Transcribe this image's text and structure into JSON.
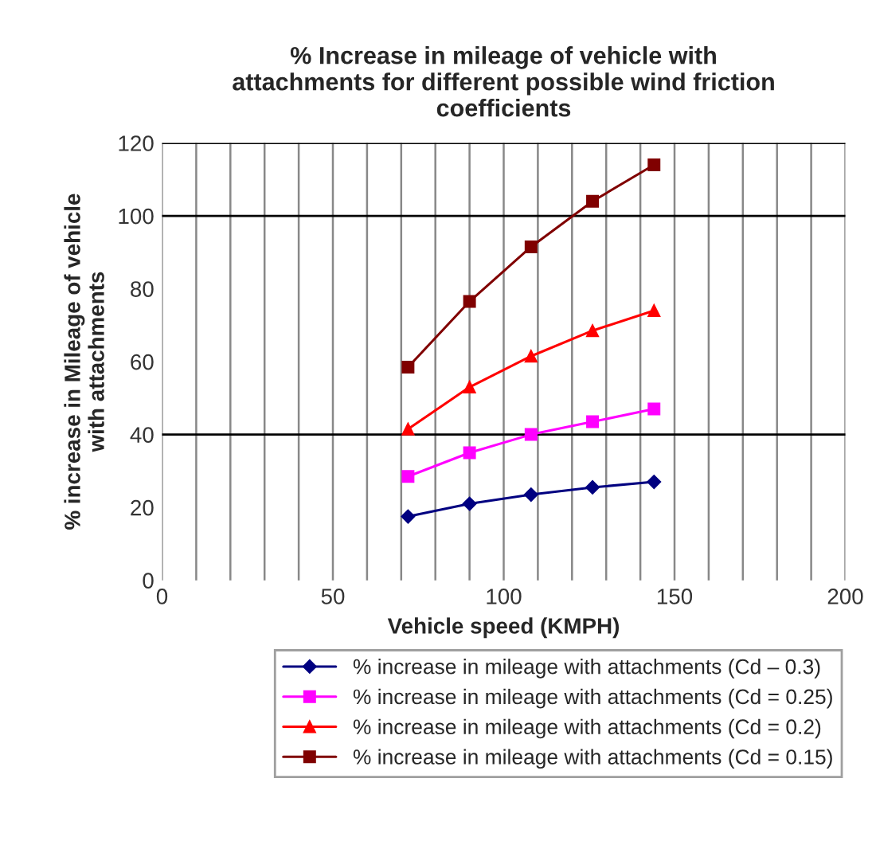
{
  "chart_data": {
    "type": "line",
    "title": "% Increase in mileage of vehicle with\nattachments for different possible wind friction\ncoefficients",
    "xlabel": "Vehicle speed (KMPH)",
    "ylabel": "% increase in Mileage of vehicle\nwith attachments",
    "x": [
      72,
      90,
      108,
      126,
      144
    ],
    "series": [
      {
        "name": "% increase in mileage with attachments (Cd – 0.3)",
        "color": "#000080",
        "marker": "diamond",
        "values": [
          17.5,
          21,
          23.5,
          25.5,
          27
        ]
      },
      {
        "name": "% increase in mileage with attachments (Cd = 0.25)",
        "color": "#ff00ff",
        "marker": "square",
        "values": [
          28.5,
          35,
          40,
          43.5,
          47
        ]
      },
      {
        "name": "% increase in mileage with attachments (Cd = 0.2)",
        "color": "#ff0000",
        "marker": "triangle",
        "values": [
          41.5,
          53,
          61.5,
          68.5,
          74
        ]
      },
      {
        "name": "% increase in mileage with attachments (Cd = 0.15)",
        "color": "#800000",
        "marker": "square",
        "values": [
          58.5,
          76.5,
          91.5,
          104,
          114
        ]
      }
    ],
    "xlim": [
      0,
      200
    ],
    "ylim": [
      0,
      120
    ],
    "xticks": [
      0,
      {
        "value": 10,
        "label": null
      },
      {
        "value": 20,
        "label": null
      },
      {
        "value": 30,
        "label": null
      },
      {
        "value": 40,
        "label": null
      },
      50,
      {
        "value": 60,
        "label": null
      },
      {
        "value": 70,
        "label": null
      },
      {
        "value": 80,
        "label": null
      },
      {
        "value": 90,
        "label": null
      },
      100,
      {
        "value": 110,
        "label": null
      },
      {
        "value": 120,
        "label": null
      },
      {
        "value": 130,
        "label": null
      },
      {
        "value": 140,
        "label": null
      },
      150,
      {
        "value": 160,
        "label": null
      },
      {
        "value": 170,
        "label": null
      },
      {
        "value": 180,
        "label": null
      },
      {
        "value": 190,
        "label": null
      },
      200
    ],
    "yticks": [
      0,
      20,
      40,
      60,
      80,
      100,
      120
    ],
    "ref_lines": [
      {
        "axis": "y",
        "value": 40,
        "label": null,
        "color": "#000000"
      },
      {
        "axis": "y",
        "value": 100,
        "label": null,
        "color": "#000000"
      }
    ],
    "grid": "x",
    "legend": "bottom",
    "line_style": "solid"
  }
}
